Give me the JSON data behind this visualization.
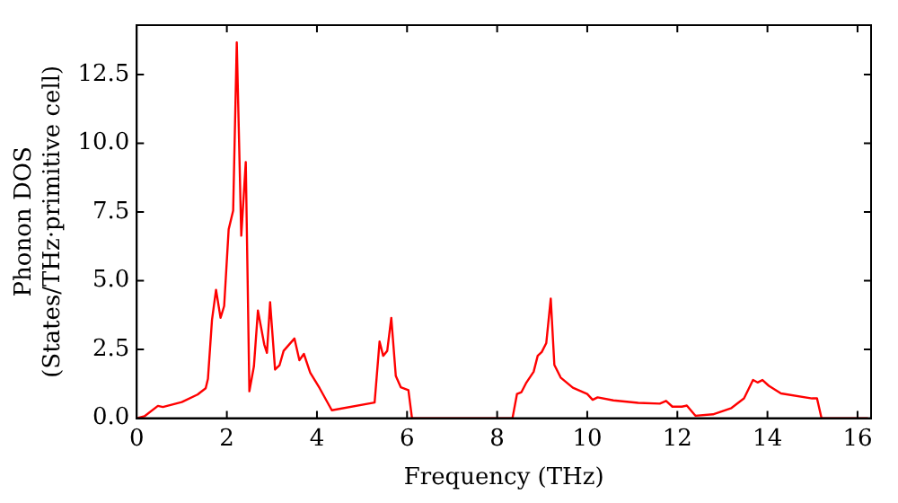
{
  "chart_data": {
    "type": "line",
    "xlabel": "Frequency (THz)",
    "ylabel": "Phonon DOS\n(States/THz·primitive cell)",
    "xlim": [
      0,
      16.3
    ],
    "ylim": [
      0,
      14.3
    ],
    "xticks": [
      0,
      2,
      4,
      6,
      8,
      10,
      12,
      14,
      16
    ],
    "yticks": [
      {
        "value": 0,
        "label": "0.0"
      },
      {
        "value": 2.5,
        "label": "2.5"
      },
      {
        "value": 5,
        "label": "5.0"
      },
      {
        "value": 7.5,
        "label": "7.5"
      },
      {
        "value": 10,
        "label": "10.0"
      },
      {
        "value": 12.5,
        "label": "12.5"
      }
    ],
    "grid": false,
    "legend": false,
    "marker": "none",
    "line_style": "solid",
    "series": [
      {
        "color": "#ff0000",
        "x": [
          0,
          0.17,
          0.47,
          0.58,
          1.0,
          1.35,
          1.53,
          1.58,
          1.67,
          1.76,
          1.86,
          1.94,
          2.04,
          2.14,
          2.22,
          2.32,
          2.42,
          2.5,
          2.6,
          2.69,
          2.83,
          2.89,
          2.96,
          3.07,
          3.17,
          3.26,
          3.5,
          3.61,
          3.71,
          3.85,
          4.06,
          4.33,
          5.28,
          5.39,
          5.47,
          5.56,
          5.65,
          5.75,
          5.86,
          6.03,
          6.11,
          8.3,
          8.34,
          8.44,
          8.54,
          8.65,
          8.81,
          8.9,
          8.99,
          9.09,
          9.19,
          9.27,
          9.41,
          9.68,
          10.0,
          10.12,
          10.23,
          10.58,
          11.13,
          11.61,
          11.75,
          11.89,
          12.1,
          12.21,
          12.4,
          12.79,
          13.2,
          13.48,
          13.68,
          13.78,
          13.89,
          14.03,
          14.3,
          14.99,
          15.1,
          15.2,
          16.23
        ],
        "values": [
          0,
          0.07,
          0.45,
          0.41,
          0.59,
          0.86,
          1.09,
          1.43,
          3.58,
          4.67,
          3.65,
          4.08,
          6.87,
          7.55,
          13.67,
          6.64,
          9.32,
          0.98,
          1.88,
          3.92,
          2.68,
          2.38,
          4.22,
          1.77,
          1.93,
          2.45,
          2.9,
          2.11,
          2.34,
          1.66,
          1.09,
          0.29,
          0.57,
          2.79,
          2.27,
          2.45,
          3.65,
          1.54,
          1.13,
          1.02,
          0,
          0,
          0,
          0.88,
          0.95,
          1.3,
          1.69,
          2.27,
          2.41,
          2.73,
          4.35,
          1.94,
          1.48,
          1.11,
          0.88,
          0.67,
          0.76,
          0.65,
          0.56,
          0.53,
          0.63,
          0.42,
          0.42,
          0.46,
          0.09,
          0.14,
          0.37,
          0.72,
          1.39,
          1.3,
          1.39,
          1.18,
          0.9,
          0.72,
          0.72,
          0,
          0
        ]
      }
    ]
  }
}
